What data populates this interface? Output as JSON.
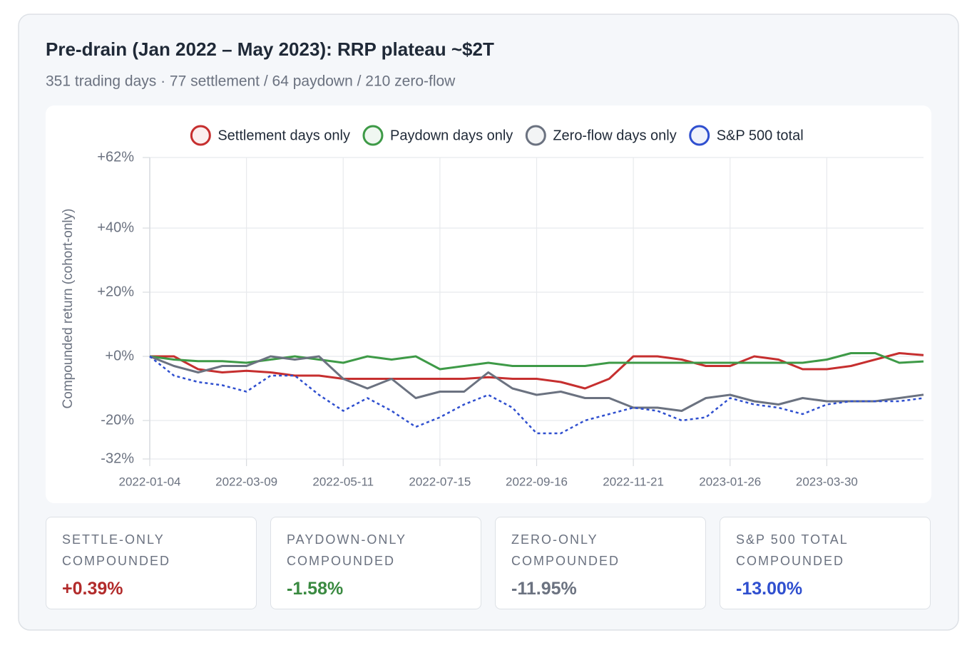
{
  "header": {
    "title": "Pre-drain (Jan 2022 – May 2023): RRP plateau ~$2T",
    "subtitle": "351 trading days · 77 settlement / 64 paydown / 210 zero-flow"
  },
  "chart_data": {
    "type": "line",
    "y_label": "Compounded return (cohort-only)",
    "categories": [
      "2022-01-04",
      null,
      null,
      null,
      "2022-03-09",
      null,
      null,
      null,
      "2022-05-11",
      null,
      null,
      null,
      "2022-07-15",
      null,
      null,
      null,
      "2022-09-16",
      null,
      null,
      null,
      "2022-11-21",
      null,
      null,
      null,
      "2023-01-26",
      null,
      null,
      null,
      "2023-03-30",
      null,
      null,
      null,
      null
    ],
    "ylim": [
      -32,
      62
    ],
    "yticks": [
      {
        "value": -32,
        "label": "-32%"
      },
      {
        "value": -20,
        "label": "-20%"
      },
      {
        "value": 0,
        "label": "+0%"
      },
      {
        "value": 20,
        "label": "+20%"
      },
      {
        "value": 40,
        "label": "+40%"
      },
      {
        "value": 62,
        "label": "+62%"
      }
    ],
    "grid": true,
    "series": [
      {
        "name": "Settlement days only",
        "color": "#c62f2f",
        "dashed": false,
        "values": [
          0,
          0,
          -4,
          -5,
          -4.5,
          -5,
          -6,
          -6,
          -7,
          -7,
          -7,
          -7,
          -7,
          -7,
          -6.5,
          -7,
          -7,
          -8,
          -10,
          -7,
          0,
          0,
          -1,
          -3,
          -3,
          0,
          -1,
          -4,
          -4,
          -3,
          -1,
          1,
          0.39
        ]
      },
      {
        "name": "Paydown days only",
        "color": "#3e9a47",
        "dashed": false,
        "values": [
          0,
          -1,
          -1.5,
          -1.5,
          -2,
          -1,
          0,
          -1,
          -2,
          0,
          -1,
          0,
          -4,
          -3,
          -2,
          -3,
          -3,
          -3,
          -3,
          -2,
          -2,
          -2,
          -2,
          -2,
          -2,
          -2,
          -2,
          -2,
          -1,
          1,
          1,
          -2,
          -1.58
        ]
      },
      {
        "name": "Zero-flow days only",
        "color": "#6b7280",
        "dashed": false,
        "values": [
          0,
          -3,
          -5,
          -3,
          -3,
          0,
          -1,
          0,
          -7,
          -10,
          -7,
          -13,
          -11,
          -11,
          -5,
          -10,
          -12,
          -11,
          -13,
          -13,
          -16,
          -16,
          -17,
          -13,
          -12,
          -14,
          -15,
          -13,
          -14,
          -14,
          -14,
          -13,
          -11.95
        ]
      },
      {
        "name": "S&P 500 total",
        "color": "#2f4fcf",
        "dashed": true,
        "values": [
          0,
          -6,
          -8,
          -9,
          -11,
          -6,
          -6,
          -12,
          -17,
          -13,
          -17,
          -22,
          -19,
          -15,
          -12,
          -16,
          -24,
          -24,
          -20,
          -18,
          -16,
          -17,
          -20,
          -19,
          -13,
          -15,
          -16,
          -18,
          -15,
          -14,
          -14,
          -14,
          -13
        ]
      }
    ]
  },
  "stats": [
    {
      "label": "SETTLE-ONLY COMPOUNDED",
      "value": "+0.39%",
      "color": "#b22b2b"
    },
    {
      "label": "PAYDOWN-ONLY COMPOUNDED",
      "value": "-1.58%",
      "color": "#3a8a41"
    },
    {
      "label": "ZERO-ONLY COMPOUNDED",
      "value": "-11.95%",
      "color": "#6b7280"
    },
    {
      "label": "S&P 500 TOTAL COMPOUNDED",
      "value": "-13.00%",
      "color": "#2f4fcf"
    }
  ]
}
